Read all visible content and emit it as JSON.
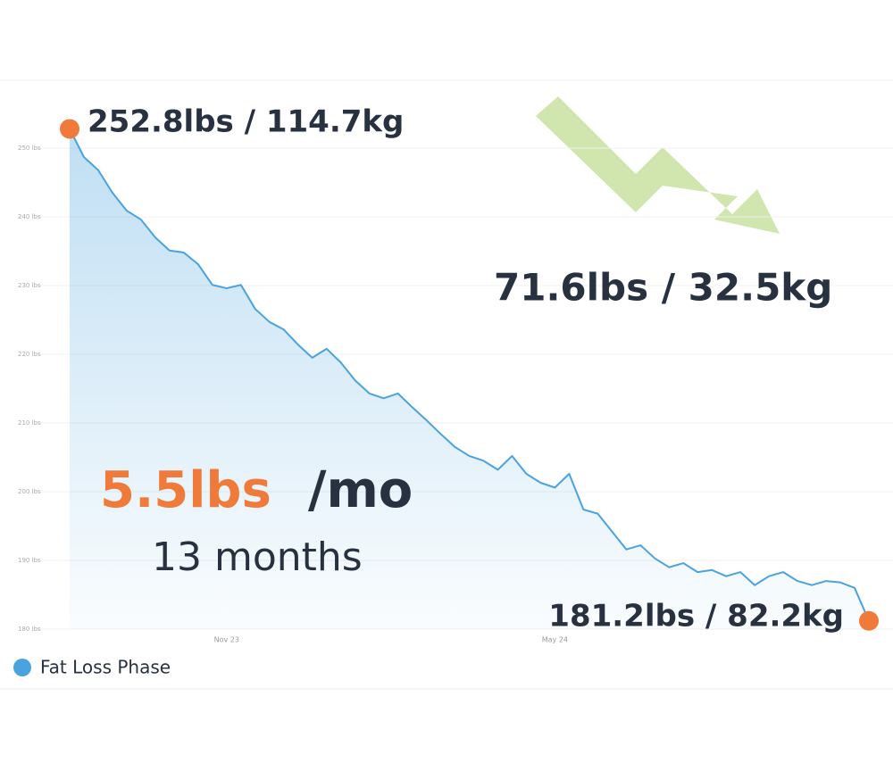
{
  "chart_data": {
    "type": "line",
    "categories": [
      null,
      null,
      null,
      null,
      null,
      null,
      null,
      null,
      null,
      null,
      null,
      "Nov 23",
      null,
      null,
      null,
      null,
      null,
      null,
      null,
      null,
      null,
      null,
      null,
      null,
      null,
      null,
      null,
      null,
      null,
      null,
      null,
      null,
      null,
      null,
      "May 24",
      null,
      null,
      null,
      null,
      null,
      null,
      null,
      null,
      null,
      null,
      null,
      null,
      null,
      null,
      null,
      null,
      null,
      null,
      null,
      null,
      null,
      null
    ],
    "series": [
      {
        "name": "Fat Loss Phase",
        "color": "#4aa3df",
        "values": [
          252.8,
          248.7,
          246.8,
          243.5,
          240.9,
          239.6,
          237.0,
          235.1,
          234.8,
          233.1,
          230.1,
          229.6,
          230.1,
          226.6,
          224.7,
          223.6,
          221.4,
          219.5,
          220.8,
          218.8,
          216.2,
          214.3,
          213.6,
          214.3,
          212.3,
          210.4,
          208.4,
          206.5,
          205.2,
          204.5,
          203.2,
          205.2,
          202.6,
          201.3,
          200.6,
          202.6,
          197.4,
          196.8,
          194.2,
          191.6,
          192.2,
          190.3,
          189.0,
          189.6,
          188.3,
          188.6,
          187.7,
          188.3,
          186.4,
          187.7,
          188.3,
          187.0,
          186.4,
          187.0,
          186.8,
          186.0,
          181.2
        ]
      }
    ],
    "endpoint_color": "#f07a3a",
    "ylim": [
      180,
      260
    ],
    "yticks": [
      {
        "value": 180,
        "label": "180 lbs"
      },
      {
        "value": 190,
        "label": "190 lbs"
      },
      {
        "value": 200,
        "label": "200 lbs"
      },
      {
        "value": 210,
        "label": "210 lbs"
      },
      {
        "value": 220,
        "label": "220 lbs"
      },
      {
        "value": 230,
        "label": "230 lbs"
      },
      {
        "value": 240,
        "label": "240 lbs"
      },
      {
        "value": 250,
        "label": "250 lbs"
      }
    ],
    "grid": true,
    "annotations": [
      "252.8lbs / 114.7kg",
      "71.6lbs / 32.5kg",
      "5.5lbs",
      "/mo",
      "13 months",
      "181.2lbs / 82.2kg"
    ]
  }
}
